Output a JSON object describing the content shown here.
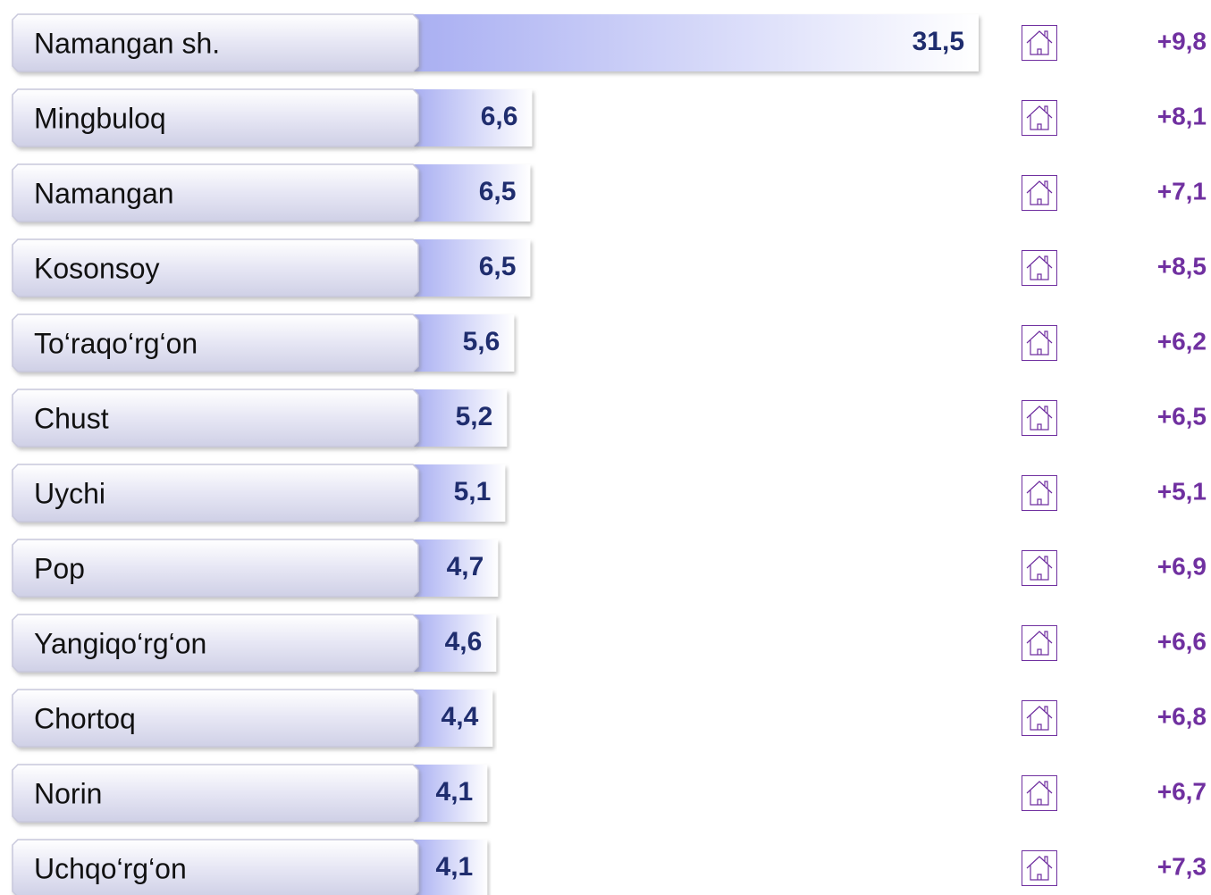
{
  "chart_data": {
    "type": "bar",
    "orientation": "horizontal",
    "categories": [
      "Namangan sh.",
      "Mingbuloq",
      "Namangan",
      "Kosonsoy",
      "To‘raqo‘rg‘on",
      "Chust",
      "Uychi",
      "Pop",
      "Yangiqo‘rg‘on",
      "Chortoq",
      "Norin",
      "Uchqo‘rg‘on"
    ],
    "values": [
      31.5,
      6.6,
      6.5,
      6.5,
      5.6,
      5.2,
      5.1,
      4.7,
      4.6,
      4.4,
      4.1,
      4.1
    ],
    "value_labels": [
      "31,5",
      "6,6",
      "6,5",
      "6,5",
      "5,6",
      "5,2",
      "5,1",
      "4,7",
      "4,6",
      "4,4",
      "4,1",
      "4,1"
    ],
    "color": "#a9aff2",
    "xlim": [
      0,
      31.5
    ],
    "growth": {
      "values": [
        9.8,
        8.1,
        7.1,
        8.5,
        6.2,
        6.5,
        5.1,
        6.9,
        6.6,
        6.8,
        6.7,
        7.3
      ],
      "labels": [
        "+9,8",
        "+8,1",
        "+7,1",
        "+8,5",
        "+6,2",
        "+6,5",
        "+5,1",
        "+6,9",
        "+6,6",
        "+6,8",
        "+6,7",
        "+7,3"
      ],
      "color": "#7030a0"
    }
  }
}
